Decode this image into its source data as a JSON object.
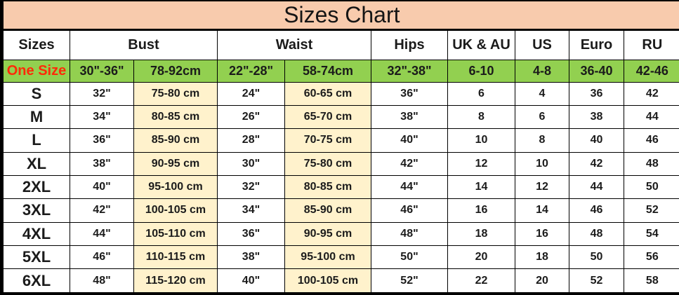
{
  "colors": {
    "title_bg": "#F8CBAD",
    "highlight_bg": "#92D050",
    "cm_bg": "#FFF2CC",
    "one_size_text": "#FF2A08",
    "border": "#000000",
    "text": "#1B1B1B"
  },
  "chart_data": {
    "type": "table",
    "title": "Sizes Chart",
    "columns": [
      "Sizes",
      "Bust",
      "Waist",
      "Hips",
      "UK & AU",
      "US",
      "Euro",
      "RU"
    ],
    "column_spans": {
      "Bust": 2,
      "Waist": 2
    },
    "sub_column_note": "Bust and Waist each span an inches column and a centimetres column",
    "rows": [
      [
        "One Size",
        "30\"-36\"",
        "78-92cm",
        "22\"-28\"",
        "58-74cm",
        "32\"-38\"",
        "6-10",
        "4-8",
        "36-40",
        "42-46"
      ],
      [
        "S",
        "32\"",
        "75-80 cm",
        "24\"",
        "60-65 cm",
        "36\"",
        "6",
        "4",
        "36",
        "42"
      ],
      [
        "M",
        "34\"",
        "80-85 cm",
        "26\"",
        "65-70 cm",
        "38\"",
        "8",
        "6",
        "38",
        "44"
      ],
      [
        "L",
        "36\"",
        "85-90 cm",
        "28\"",
        "70-75 cm",
        "40\"",
        "10",
        "8",
        "40",
        "46"
      ],
      [
        "XL",
        "38\"",
        "90-95 cm",
        "30\"",
        "75-80 cm",
        "42\"",
        "12",
        "10",
        "42",
        "48"
      ],
      [
        "2XL",
        "40\"",
        "95-100 cm",
        "32\"",
        "80-85 cm",
        "44\"",
        "14",
        "12",
        "44",
        "50"
      ],
      [
        "3XL",
        "42\"",
        "100-105 cm",
        "34\"",
        "85-90 cm",
        "46\"",
        "16",
        "14",
        "46",
        "52"
      ],
      [
        "4XL",
        "44\"",
        "105-110 cm",
        "36\"",
        "90-95 cm",
        "48\"",
        "18",
        "16",
        "48",
        "54"
      ],
      [
        "5XL",
        "46\"",
        "110-115 cm",
        "38\"",
        "95-100 cm",
        "50\"",
        "20",
        "18",
        "50",
        "56"
      ],
      [
        "6XL",
        "48\"",
        "115-120 cm",
        "40\"",
        "100-105 cm",
        "52\"",
        "22",
        "20",
        "52",
        "58"
      ]
    ]
  }
}
